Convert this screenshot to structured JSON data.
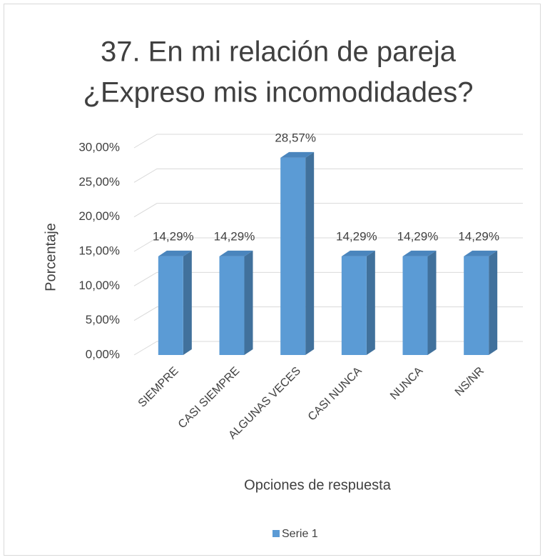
{
  "chart_data": {
    "type": "bar3d",
    "title": [
      "37. En mi relación de pareja",
      "¿Expreso mis incomodidades?"
    ],
    "x_label": "Opciones de respuesta",
    "y_label": "Porcentaje",
    "categories": [
      "SIEMPRE",
      "CASI SIEMPRE",
      "ALGUNAS VECES",
      "CASI NUNCA",
      "NUNCA",
      "NS/NR"
    ],
    "series": [
      {
        "name": "Serie 1",
        "color": "#5b9bd5",
        "values": [
          14.29,
          14.29,
          28.57,
          14.29,
          14.29,
          14.29
        ],
        "value_labels": [
          "14,29%",
          "14,29%",
          "28,57%",
          "14,29%",
          "14,29%",
          "14,29%"
        ]
      }
    ],
    "ylim": [
      0,
      30
    ],
    "yticks": [
      {
        "value": 0,
        "label": "0,00%"
      },
      {
        "value": 5,
        "label": "5,00%"
      },
      {
        "value": 10,
        "label": "10,00%"
      },
      {
        "value": 15,
        "label": "15,00%"
      },
      {
        "value": 20,
        "label": "20,00%"
      },
      {
        "value": 25,
        "label": "25,00%"
      },
      {
        "value": 30,
        "label": "30,00%"
      }
    ],
    "grid": true
  }
}
